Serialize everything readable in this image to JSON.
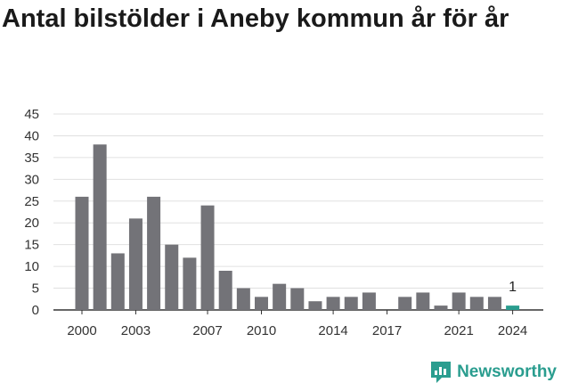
{
  "title": "Antal bilstölder i Aneby kommun år för år",
  "brand": {
    "name": "Newsworthy",
    "icon": "newsworthy-logo-icon"
  },
  "colors": {
    "bar": "#737378",
    "highlight": "#2a9d8f",
    "grid": "#e0e0e0",
    "axis": "#333333"
  },
  "chart_data": {
    "type": "bar",
    "title": "Antal bilstölder i Aneby kommun år för år",
    "xlabel": "",
    "ylabel": "",
    "ylim": [
      0,
      45
    ],
    "yticks": [
      0,
      5,
      10,
      15,
      20,
      25,
      30,
      35,
      40,
      45
    ],
    "grid": true,
    "categories": [
      "2000",
      "2001",
      "2002",
      "2003",
      "2004",
      "2005",
      "2006",
      "2007",
      "2008",
      "2009",
      "2010",
      "2011",
      "2012",
      "2013",
      "2014",
      "2015",
      "2016",
      "2017",
      "2018",
      "2019",
      "2020",
      "2021",
      "2022",
      "2023",
      "2024"
    ],
    "values": [
      26,
      38,
      13,
      21,
      26,
      15,
      12,
      24,
      9,
      5,
      3,
      6,
      5,
      2,
      3,
      3,
      4,
      0,
      3,
      4,
      1,
      4,
      3,
      3,
      1
    ],
    "xtick_labels": [
      "2000",
      "2003",
      "2007",
      "2010",
      "2014",
      "2017",
      "2021",
      "2024"
    ],
    "highlight_category": "2024",
    "annotations": [
      {
        "category": "2024",
        "text": "1"
      }
    ]
  }
}
